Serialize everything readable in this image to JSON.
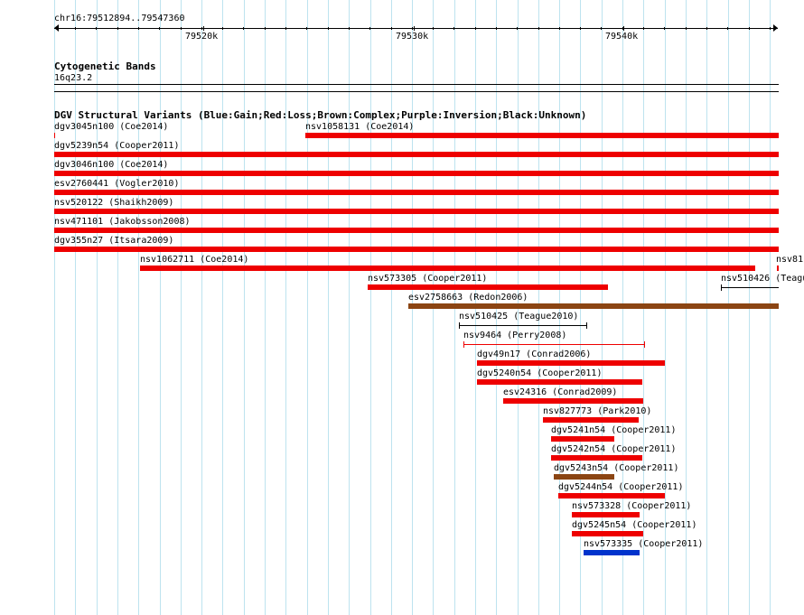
{
  "ruler": {
    "region": "chr16:79512894..79547360",
    "ticks": [
      "79520k",
      "79530k",
      "79540k"
    ]
  },
  "cytoband": {
    "title": "Cytogenetic Bands",
    "band": "16q23.2"
  },
  "dgv": {
    "title": "DGV Structural Variants (Blue:Gain;Red:Loss;Brown:Complex;Purple:Inversion;Black:Unknown)",
    "colors": {
      "loss": "#ee0000",
      "gain": "#0033cc",
      "complex": "#8b4513",
      "unknown": "#000000"
    },
    "features": [
      {
        "label": "dgv3045n100 (Coe2014)"
      },
      {
        "label": "nsv1058131 (Coe2014)"
      },
      {
        "label": "dgv5239n54 (Cooper2011)"
      },
      {
        "label": "dgv3046n100 (Coe2014)"
      },
      {
        "label": "esv2760441 (Vogler2010)"
      },
      {
        "label": "nsv520122 (Shaikh2009)"
      },
      {
        "label": "nsv471101 (Jakobsson2008)"
      },
      {
        "label": "dgv355n27 (Itsara2009)"
      },
      {
        "label": "nsv1062711 (Coe2014)"
      },
      {
        "label": "nsv81"
      },
      {
        "label": "nsv573305 (Cooper2011)"
      },
      {
        "label": "nsv510426 (Teagu"
      },
      {
        "label": "esv2758663 (Redon2006)"
      },
      {
        "label": "nsv510425 (Teague2010)"
      },
      {
        "label": "nsv9464 (Perry2008)"
      },
      {
        "label": "dgv49n17 (Conrad2006)"
      },
      {
        "label": "dgv5240n54 (Cooper2011)"
      },
      {
        "label": "esv24316 (Conrad2009)"
      },
      {
        "label": "nsv827773 (Park2010)"
      },
      {
        "label": "dgv5241n54 (Cooper2011)"
      },
      {
        "label": "dgv5242n54 (Cooper2011)"
      },
      {
        "label": "dgv5243n54 (Cooper2011)"
      },
      {
        "label": "dgv5244n54 (Cooper2011)"
      },
      {
        "label": "nsv573328 (Cooper2011)"
      },
      {
        "label": "dgv5245n54 (Cooper2011)"
      },
      {
        "label": "nsv573335 (Cooper2011)"
      }
    ]
  }
}
